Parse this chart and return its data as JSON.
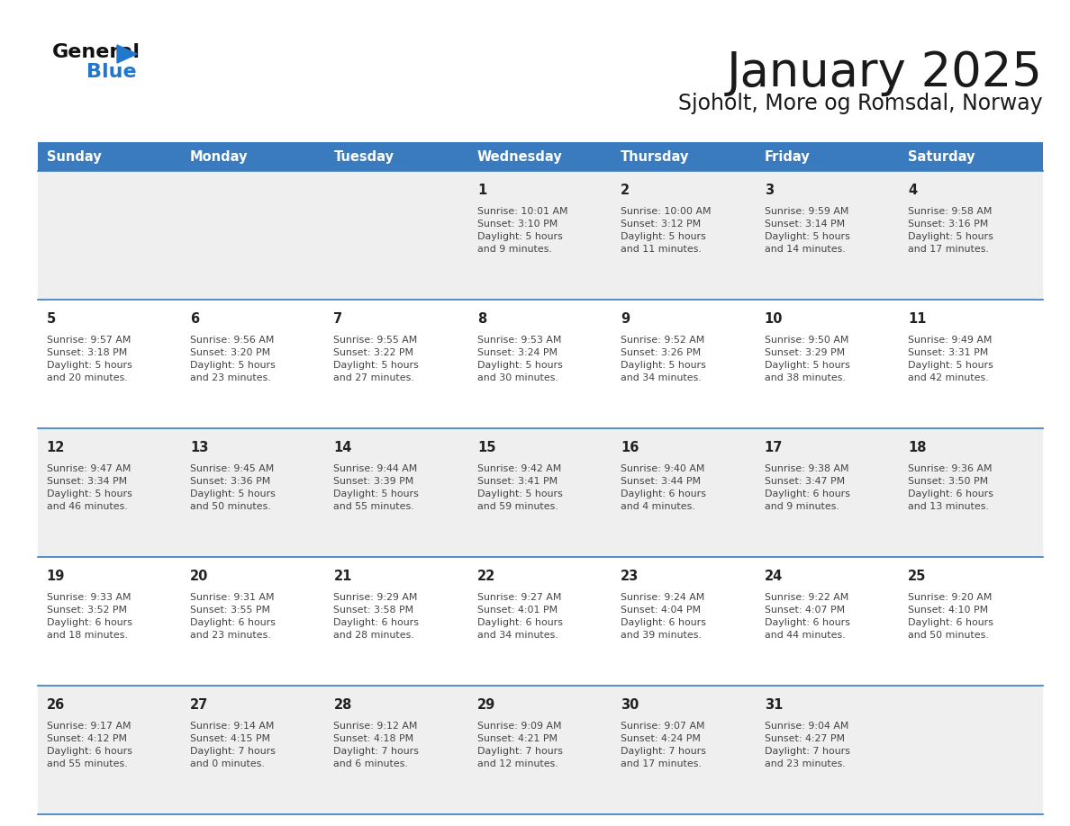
{
  "title": "January 2025",
  "subtitle": "Sjoholt, More og Romsdal, Norway",
  "header_bg": "#3a7bbf",
  "header_text": "#ffffff",
  "days_of_week": [
    "Sunday",
    "Monday",
    "Tuesday",
    "Wednesday",
    "Thursday",
    "Friday",
    "Saturday"
  ],
  "row_bg_light": "#efefef",
  "row_bg_white": "#ffffff",
  "cell_border_color": "#3a7bbf",
  "text_color": "#444444",
  "day_num_color": "#222222",
  "calendar": [
    [
      {
        "day": "",
        "info": ""
      },
      {
        "day": "",
        "info": ""
      },
      {
        "day": "",
        "info": ""
      },
      {
        "day": "1",
        "info": "Sunrise: 10:01 AM\nSunset: 3:10 PM\nDaylight: 5 hours\nand 9 minutes."
      },
      {
        "day": "2",
        "info": "Sunrise: 10:00 AM\nSunset: 3:12 PM\nDaylight: 5 hours\nand 11 minutes."
      },
      {
        "day": "3",
        "info": "Sunrise: 9:59 AM\nSunset: 3:14 PM\nDaylight: 5 hours\nand 14 minutes."
      },
      {
        "day": "4",
        "info": "Sunrise: 9:58 AM\nSunset: 3:16 PM\nDaylight: 5 hours\nand 17 minutes."
      }
    ],
    [
      {
        "day": "5",
        "info": "Sunrise: 9:57 AM\nSunset: 3:18 PM\nDaylight: 5 hours\nand 20 minutes."
      },
      {
        "day": "6",
        "info": "Sunrise: 9:56 AM\nSunset: 3:20 PM\nDaylight: 5 hours\nand 23 minutes."
      },
      {
        "day": "7",
        "info": "Sunrise: 9:55 AM\nSunset: 3:22 PM\nDaylight: 5 hours\nand 27 minutes."
      },
      {
        "day": "8",
        "info": "Sunrise: 9:53 AM\nSunset: 3:24 PM\nDaylight: 5 hours\nand 30 minutes."
      },
      {
        "day": "9",
        "info": "Sunrise: 9:52 AM\nSunset: 3:26 PM\nDaylight: 5 hours\nand 34 minutes."
      },
      {
        "day": "10",
        "info": "Sunrise: 9:50 AM\nSunset: 3:29 PM\nDaylight: 5 hours\nand 38 minutes."
      },
      {
        "day": "11",
        "info": "Sunrise: 9:49 AM\nSunset: 3:31 PM\nDaylight: 5 hours\nand 42 minutes."
      }
    ],
    [
      {
        "day": "12",
        "info": "Sunrise: 9:47 AM\nSunset: 3:34 PM\nDaylight: 5 hours\nand 46 minutes."
      },
      {
        "day": "13",
        "info": "Sunrise: 9:45 AM\nSunset: 3:36 PM\nDaylight: 5 hours\nand 50 minutes."
      },
      {
        "day": "14",
        "info": "Sunrise: 9:44 AM\nSunset: 3:39 PM\nDaylight: 5 hours\nand 55 minutes."
      },
      {
        "day": "15",
        "info": "Sunrise: 9:42 AM\nSunset: 3:41 PM\nDaylight: 5 hours\nand 59 minutes."
      },
      {
        "day": "16",
        "info": "Sunrise: 9:40 AM\nSunset: 3:44 PM\nDaylight: 6 hours\nand 4 minutes."
      },
      {
        "day": "17",
        "info": "Sunrise: 9:38 AM\nSunset: 3:47 PM\nDaylight: 6 hours\nand 9 minutes."
      },
      {
        "day": "18",
        "info": "Sunrise: 9:36 AM\nSunset: 3:50 PM\nDaylight: 6 hours\nand 13 minutes."
      }
    ],
    [
      {
        "day": "19",
        "info": "Sunrise: 9:33 AM\nSunset: 3:52 PM\nDaylight: 6 hours\nand 18 minutes."
      },
      {
        "day": "20",
        "info": "Sunrise: 9:31 AM\nSunset: 3:55 PM\nDaylight: 6 hours\nand 23 minutes."
      },
      {
        "day": "21",
        "info": "Sunrise: 9:29 AM\nSunset: 3:58 PM\nDaylight: 6 hours\nand 28 minutes."
      },
      {
        "day": "22",
        "info": "Sunrise: 9:27 AM\nSunset: 4:01 PM\nDaylight: 6 hours\nand 34 minutes."
      },
      {
        "day": "23",
        "info": "Sunrise: 9:24 AM\nSunset: 4:04 PM\nDaylight: 6 hours\nand 39 minutes."
      },
      {
        "day": "24",
        "info": "Sunrise: 9:22 AM\nSunset: 4:07 PM\nDaylight: 6 hours\nand 44 minutes."
      },
      {
        "day": "25",
        "info": "Sunrise: 9:20 AM\nSunset: 4:10 PM\nDaylight: 6 hours\nand 50 minutes."
      }
    ],
    [
      {
        "day": "26",
        "info": "Sunrise: 9:17 AM\nSunset: 4:12 PM\nDaylight: 6 hours\nand 55 minutes."
      },
      {
        "day": "27",
        "info": "Sunrise: 9:14 AM\nSunset: 4:15 PM\nDaylight: 7 hours\nand 0 minutes."
      },
      {
        "day": "28",
        "info": "Sunrise: 9:12 AM\nSunset: 4:18 PM\nDaylight: 7 hours\nand 6 minutes."
      },
      {
        "day": "29",
        "info": "Sunrise: 9:09 AM\nSunset: 4:21 PM\nDaylight: 7 hours\nand 12 minutes."
      },
      {
        "day": "30",
        "info": "Sunrise: 9:07 AM\nSunset: 4:24 PM\nDaylight: 7 hours\nand 17 minutes."
      },
      {
        "day": "31",
        "info": "Sunrise: 9:04 AM\nSunset: 4:27 PM\nDaylight: 7 hours\nand 23 minutes."
      },
      {
        "day": "",
        "info": ""
      }
    ]
  ]
}
